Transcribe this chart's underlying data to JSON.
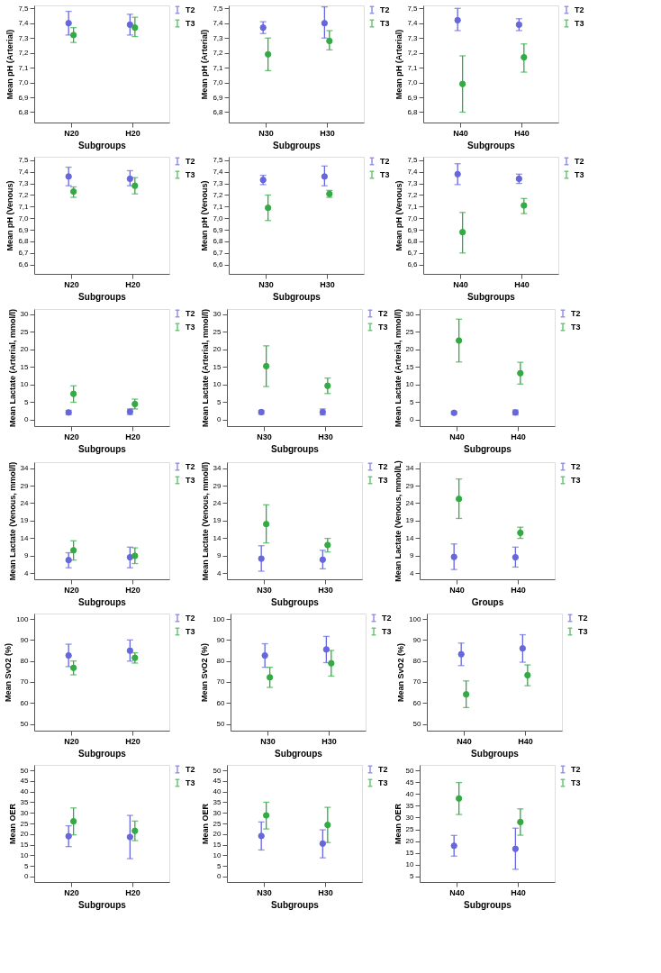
{
  "chart_data": [
    {
      "type": "scatter",
      "categories": [
        "N20",
        "H20"
      ],
      "xlabel": "Subgroups",
      "ylabel": "Mean pH (Arterial)",
      "ylim": [
        6.73,
        7.52
      ],
      "yticks": [
        {
          "value": 6.8,
          "label": "6,8"
        },
        {
          "value": 6.9,
          "label": "6,9"
        },
        {
          "value": 7.0,
          "label": "7,0"
        },
        {
          "value": 7.1,
          "label": "7,1"
        },
        {
          "value": 7.2,
          "label": "7,2"
        },
        {
          "value": 7.3,
          "label": "7,3"
        },
        {
          "value": 7.4,
          "label": "7,4"
        },
        {
          "value": 7.5,
          "label": "7,5"
        }
      ],
      "legend": "top right",
      "marker": "circle",
      "series": [
        {
          "name": "T2",
          "color": "#6666dd",
          "values": [
            7.4,
            7.39
          ],
          "errors": [
            [
              7.32,
              7.48
            ],
            [
              7.32,
              7.46
            ]
          ]
        },
        {
          "name": "T3",
          "color": "#33aa44",
          "values": [
            7.32,
            7.37
          ],
          "errors": [
            [
              7.27,
              7.37
            ],
            [
              7.31,
              7.44
            ]
          ]
        }
      ]
    },
    {
      "type": "scatter",
      "categories": [
        "N30",
        "H30"
      ],
      "xlabel": "Subgroups",
      "ylabel": "Mean pH (Arterial)",
      "ylim": [
        6.73,
        7.52
      ],
      "yticks": [
        {
          "value": 6.8,
          "label": "6,8"
        },
        {
          "value": 6.9,
          "label": "6,9"
        },
        {
          "value": 7.0,
          "label": "7,0"
        },
        {
          "value": 7.1,
          "label": "7,1"
        },
        {
          "value": 7.2,
          "label": "7,2"
        },
        {
          "value": 7.3,
          "label": "7,3"
        },
        {
          "value": 7.4,
          "label": "7,4"
        },
        {
          "value": 7.5,
          "label": "7,5"
        }
      ],
      "legend": "top right",
      "marker": "circle",
      "series": [
        {
          "name": "T2",
          "color": "#6666dd",
          "values": [
            7.37,
            7.4
          ],
          "errors": [
            [
              7.33,
              7.41
            ],
            [
              7.3,
              7.51
            ]
          ]
        },
        {
          "name": "T3",
          "color": "#33aa44",
          "values": [
            7.19,
            7.28
          ],
          "errors": [
            [
              7.08,
              7.3
            ],
            [
              7.22,
              7.35
            ]
          ]
        }
      ]
    },
    {
      "type": "scatter",
      "categories": [
        "N40",
        "H40"
      ],
      "xlabel": "Subgroups",
      "ylabel": "Mean pH (Arterial)",
      "ylim": [
        6.73,
        7.52
      ],
      "yticks": [
        {
          "value": 6.8,
          "label": "6,8"
        },
        {
          "value": 6.9,
          "label": "6,9"
        },
        {
          "value": 7.0,
          "label": "7,0"
        },
        {
          "value": 7.1,
          "label": "7,1"
        },
        {
          "value": 7.2,
          "label": "7,2"
        },
        {
          "value": 7.3,
          "label": "7,3"
        },
        {
          "value": 7.4,
          "label": "7,4"
        },
        {
          "value": 7.5,
          "label": "7,5"
        }
      ],
      "legend": "top right",
      "marker": "circle",
      "series": [
        {
          "name": "T2",
          "color": "#6666dd",
          "values": [
            7.42,
            7.39
          ],
          "errors": [
            [
              7.35,
              7.5
            ],
            [
              7.35,
              7.43
            ]
          ]
        },
        {
          "name": "T3",
          "color": "#33aa44",
          "values": [
            6.99,
            7.17
          ],
          "errors": [
            [
              6.8,
              7.18
            ],
            [
              7.07,
              7.26
            ]
          ]
        }
      ]
    },
    {
      "type": "scatter",
      "categories": [
        "N20",
        "H20"
      ],
      "xlabel": "Subgroups",
      "ylabel": "Mean pH (Venous)",
      "ylim": [
        6.52,
        7.53
      ],
      "yticks": [
        {
          "value": 6.6,
          "label": "6,6"
        },
        {
          "value": 6.7,
          "label": "6,7"
        },
        {
          "value": 6.8,
          "label": "6,8"
        },
        {
          "value": 6.9,
          "label": "6,9"
        },
        {
          "value": 7.0,
          "label": "7,0"
        },
        {
          "value": 7.1,
          "label": "7,1"
        },
        {
          "value": 7.2,
          "label": "7,2"
        },
        {
          "value": 7.3,
          "label": "7,3"
        },
        {
          "value": 7.4,
          "label": "7,4"
        },
        {
          "value": 7.5,
          "label": "7,5"
        }
      ],
      "legend": "top right",
      "marker": "circle",
      "series": [
        {
          "name": "T2",
          "color": "#6666dd",
          "values": [
            7.36,
            7.34
          ],
          "errors": [
            [
              7.28,
              7.44
            ],
            [
              7.28,
              7.41
            ]
          ]
        },
        {
          "name": "T3",
          "color": "#33aa44",
          "values": [
            7.23,
            7.28
          ],
          "errors": [
            [
              7.18,
              7.27
            ],
            [
              7.21,
              7.35
            ]
          ]
        }
      ]
    },
    {
      "type": "scatter",
      "categories": [
        "N30",
        "H30"
      ],
      "xlabel": "Subgroups",
      "ylabel": "Mean pH (Venous)",
      "ylim": [
        6.52,
        7.53
      ],
      "yticks": [
        {
          "value": 6.6,
          "label": "6,6"
        },
        {
          "value": 6.7,
          "label": "6,7"
        },
        {
          "value": 6.8,
          "label": "6,8"
        },
        {
          "value": 6.9,
          "label": "6,9"
        },
        {
          "value": 7.0,
          "label": "7,0"
        },
        {
          "value": 7.1,
          "label": "7,1"
        },
        {
          "value": 7.2,
          "label": "7,2"
        },
        {
          "value": 7.3,
          "label": "7,3"
        },
        {
          "value": 7.4,
          "label": "7,4"
        },
        {
          "value": 7.5,
          "label": "7,5"
        }
      ],
      "legend": "top right",
      "marker": "circle",
      "series": [
        {
          "name": "T2",
          "color": "#6666dd",
          "values": [
            7.33,
            7.36
          ],
          "errors": [
            [
              7.29,
              7.37
            ],
            [
              7.28,
              7.45
            ]
          ]
        },
        {
          "name": "T3",
          "color": "#33aa44",
          "values": [
            7.09,
            7.21
          ],
          "errors": [
            [
              6.98,
              7.2
            ],
            [
              7.18,
              7.24
            ]
          ]
        }
      ]
    },
    {
      "type": "scatter",
      "categories": [
        "N40",
        "H40"
      ],
      "xlabel": "Subgroups",
      "ylabel": "Mean pH (Venous)",
      "ylim": [
        6.52,
        7.53
      ],
      "yticks": [
        {
          "value": 6.6,
          "label": "6,6"
        },
        {
          "value": 6.7,
          "label": "6,7"
        },
        {
          "value": 6.8,
          "label": "6,8"
        },
        {
          "value": 6.9,
          "label": "6,9"
        },
        {
          "value": 7.0,
          "label": "7,0"
        },
        {
          "value": 7.1,
          "label": "7,1"
        },
        {
          "value": 7.2,
          "label": "7,2"
        },
        {
          "value": 7.3,
          "label": "7,3"
        },
        {
          "value": 7.4,
          "label": "7,4"
        },
        {
          "value": 7.5,
          "label": "7,5"
        }
      ],
      "legend": "top right",
      "marker": "circle",
      "series": [
        {
          "name": "T2",
          "color": "#6666dd",
          "values": [
            7.38,
            7.34
          ],
          "errors": [
            [
              7.29,
              7.47
            ],
            [
              7.3,
              7.38
            ]
          ]
        },
        {
          "name": "T3",
          "color": "#33aa44",
          "values": [
            6.88,
            7.11
          ],
          "errors": [
            [
              6.7,
              7.05
            ],
            [
              7.04,
              7.17
            ]
          ]
        }
      ]
    },
    {
      "type": "scatter",
      "categories": [
        "N20",
        "H20"
      ],
      "xlabel": "Subgroups",
      "ylabel": "Mean Lactate (Arterial, mmol/l)",
      "ylim": [
        -1.9,
        31.5
      ],
      "yticks": [
        0,
        5,
        10,
        15,
        20,
        25,
        30
      ],
      "legend": "top right",
      "marker": "circle",
      "series": [
        {
          "name": "T2",
          "color": "#6666dd",
          "values": [
            2.0,
            2.2
          ],
          "errors": [
            [
              1.4,
              2.6
            ],
            [
              1.4,
              3.0
            ]
          ]
        },
        {
          "name": "T3",
          "color": "#33aa44",
          "values": [
            7.3,
            4.4
          ],
          "errors": [
            [
              4.9,
              9.6
            ],
            [
              3.0,
              5.8
            ]
          ]
        }
      ]
    },
    {
      "type": "scatter",
      "categories": [
        "N30",
        "H30"
      ],
      "xlabel": "Subgroups",
      "ylabel": "Mean Lactate (Arterial, mmol/l)",
      "ylim": [
        -1.9,
        31.5
      ],
      "yticks": [
        0,
        5,
        10,
        15,
        20,
        25,
        30
      ],
      "legend": "top right",
      "marker": "circle",
      "series": [
        {
          "name": "T2",
          "color": "#6666dd",
          "values": [
            2.1,
            2.1
          ],
          "errors": [
            [
              1.5,
              2.6
            ],
            [
              1.3,
              3.0
            ]
          ]
        },
        {
          "name": "T3",
          "color": "#33aa44",
          "values": [
            15.2,
            9.6
          ],
          "errors": [
            [
              9.4,
              21.0
            ],
            [
              7.4,
              11.8
            ]
          ]
        }
      ]
    },
    {
      "type": "scatter",
      "categories": [
        "N40",
        "H40"
      ],
      "xlabel": "Subgroups",
      "ylabel": "Mean Lactate (Arterial, mmol/l)",
      "ylim": [
        -1.9,
        31.5
      ],
      "yticks": [
        0,
        5,
        10,
        15,
        20,
        25,
        30
      ],
      "legend": "top right",
      "marker": "circle",
      "series": [
        {
          "name": "T2",
          "color": "#6666dd",
          "values": [
            1.9,
            2.0
          ],
          "errors": [
            [
              1.5,
              2.3
            ],
            [
              1.3,
              2.7
            ]
          ]
        },
        {
          "name": "T3",
          "color": "#33aa44",
          "values": [
            22.5,
            13.2
          ],
          "errors": [
            [
              16.4,
              28.6
            ],
            [
              10.1,
              16.3
            ]
          ]
        }
      ]
    },
    {
      "type": "scatter",
      "categories": [
        "N20",
        "H20"
      ],
      "xlabel": "Subgroups",
      "ylabel": "Mean Lactate (Venous, mmol/l)",
      "ylim": [
        2.2,
        35.7
      ],
      "yticks": [
        4,
        9,
        14,
        19,
        24,
        29,
        34
      ],
      "legend": "top right",
      "marker": "circle",
      "series": [
        {
          "name": "T2",
          "color": "#6666dd",
          "values": [
            7.7,
            8.5
          ],
          "errors": [
            [
              5.5,
              9.8
            ],
            [
              5.5,
              11.4
            ]
          ]
        },
        {
          "name": "T3",
          "color": "#33aa44",
          "values": [
            10.5,
            8.9
          ],
          "errors": [
            [
              7.7,
              13.2
            ],
            [
              6.7,
              11.2
            ]
          ]
        }
      ]
    },
    {
      "type": "scatter",
      "categories": [
        "N30",
        "H30"
      ],
      "xlabel": "Subgroups",
      "ylabel": "Mean Lactate (Venous, mmol/l)",
      "ylim": [
        2.2,
        35.7
      ],
      "yticks": [
        4,
        9,
        14,
        19,
        24,
        29,
        34
      ],
      "legend": "top right",
      "marker": "circle",
      "series": [
        {
          "name": "T2",
          "color": "#6666dd",
          "values": [
            8.1,
            7.8
          ],
          "errors": [
            [
              4.5,
              11.8
            ],
            [
              5.2,
              10.5
            ]
          ]
        },
        {
          "name": "T3",
          "color": "#33aa44",
          "values": [
            18.0,
            12.0
          ],
          "errors": [
            [
              12.6,
              23.5
            ],
            [
              10.0,
              13.9
            ]
          ]
        }
      ]
    },
    {
      "type": "scatter",
      "categories": [
        "N40",
        "H40"
      ],
      "xlabel": "Groups",
      "ylabel": "Mean Lactate (Venous, mmol/L)",
      "ylim": [
        2.2,
        35.7
      ],
      "yticks": [
        4,
        9,
        14,
        19,
        24,
        29,
        34
      ],
      "legend": "top right",
      "marker": "circle",
      "series": [
        {
          "name": "T2",
          "color": "#6666dd",
          "values": [
            8.6,
            8.5
          ],
          "errors": [
            [
              5.0,
              12.3
            ],
            [
              5.7,
              11.4
            ]
          ]
        },
        {
          "name": "T3",
          "color": "#33aa44",
          "values": [
            25.2,
            15.5
          ],
          "errors": [
            [
              19.6,
              30.9
            ],
            [
              13.9,
              17.1
            ]
          ]
        }
      ]
    },
    {
      "type": "scatter",
      "categories": [
        "N20",
        "H20"
      ],
      "xlabel": "Subgroups",
      "ylabel": "Mean SvO2 (%)",
      "ylim": [
        46.8,
        102.6
      ],
      "yticks": [
        50,
        60,
        70,
        80,
        90,
        100
      ],
      "legend": "top right",
      "marker": "circle",
      "series": [
        {
          "name": "T2",
          "color": "#6666dd",
          "values": [
            82.6,
            84.9
          ],
          "errors": [
            [
              77.3,
              88.0
            ],
            [
              79.9,
              90.0
            ]
          ]
        },
        {
          "name": "T3",
          "color": "#33aa44",
          "values": [
            76.7,
            81.5
          ],
          "errors": [
            [
              73.4,
              80.0
            ],
            [
              79.0,
              83.9
            ]
          ]
        }
      ]
    },
    {
      "type": "scatter",
      "categories": [
        "N30",
        "H30"
      ],
      "xlabel": "Subgroups",
      "ylabel": "Mean SvO2 (%)",
      "ylim": [
        46.8,
        102.6
      ],
      "yticks": [
        50,
        60,
        70,
        80,
        90,
        100
      ],
      "legend": "top right",
      "marker": "circle",
      "series": [
        {
          "name": "T2",
          "color": "#6666dd",
          "values": [
            82.6,
            85.5
          ],
          "errors": [
            [
              77.0,
              88.2
            ],
            [
              79.2,
              91.7
            ]
          ]
        },
        {
          "name": "T3",
          "color": "#33aa44",
          "values": [
            72.2,
            78.9
          ],
          "errors": [
            [
              67.4,
              77.0
            ],
            [
              72.8,
              85.0
            ]
          ]
        }
      ]
    },
    {
      "type": "scatter",
      "categories": [
        "N40",
        "H40"
      ],
      "xlabel": "Subgroups",
      "ylabel": "Mean SvO2 (%)",
      "ylim": [
        46.8,
        102.6
      ],
      "yticks": [
        50,
        60,
        70,
        80,
        90,
        100
      ],
      "legend": "top right",
      "marker": "circle",
      "series": [
        {
          "name": "T2",
          "color": "#6666dd",
          "values": [
            83.2,
            86.0
          ],
          "errors": [
            [
              77.8,
              88.5
            ],
            [
              79.4,
              92.5
            ]
          ]
        },
        {
          "name": "T3",
          "color": "#33aa44",
          "values": [
            64.1,
            73.2
          ],
          "errors": [
            [
              57.8,
              70.5
            ],
            [
              68.2,
              78.1
            ]
          ]
        }
      ]
    },
    {
      "type": "scatter",
      "categories": [
        "N20",
        "H20"
      ],
      "xlabel": "Subgroups",
      "ylabel": "Mean OER",
      "ylim": [
        -2.6,
        52.6
      ],
      "yticks": [
        0,
        5,
        10,
        15,
        20,
        25,
        30,
        35,
        40,
        45,
        50
      ],
      "legend": "top right",
      "marker": "circle",
      "series": [
        {
          "name": "T2",
          "color": "#6666dd",
          "values": [
            19.0,
            18.6
          ],
          "errors": [
            [
              14.1,
              23.9
            ],
            [
              8.4,
              28.8
            ]
          ]
        },
        {
          "name": "T3",
          "color": "#33aa44",
          "values": [
            26.0,
            21.5
          ],
          "errors": [
            [
              19.6,
              32.3
            ],
            [
              16.9,
              26.1
            ]
          ]
        }
      ]
    },
    {
      "type": "scatter",
      "categories": [
        "N30",
        "H30"
      ],
      "xlabel": "Subgroups",
      "ylabel": "Mean OER",
      "ylim": [
        -2.6,
        52.6
      ],
      "yticks": [
        0,
        5,
        10,
        15,
        20,
        25,
        30,
        35,
        40,
        45,
        50
      ],
      "legend": "top right",
      "marker": "circle",
      "series": [
        {
          "name": "T2",
          "color": "#6666dd",
          "values": [
            19.1,
            15.5
          ],
          "errors": [
            [
              12.5,
              25.7
            ],
            [
              8.8,
              22.0
            ]
          ]
        },
        {
          "name": "T3",
          "color": "#33aa44",
          "values": [
            28.8,
            24.3
          ],
          "errors": [
            [
              22.4,
              35.0
            ],
            [
              16.0,
              32.6
            ]
          ]
        }
      ]
    },
    {
      "type": "scatter",
      "categories": [
        "N40",
        "H40"
      ],
      "xlabel": "Subgroups",
      "ylabel": "Mean OER",
      "ylim": [
        2.6,
        52.4
      ],
      "yticks": [
        5,
        10,
        15,
        20,
        25,
        30,
        35,
        40,
        45,
        50
      ],
      "legend": "top right",
      "marker": "circle",
      "series": [
        {
          "name": "T2",
          "color": "#6666dd",
          "values": [
            18.0,
            16.7
          ],
          "errors": [
            [
              13.6,
              22.4
            ],
            [
              8.0,
              25.5
            ]
          ]
        },
        {
          "name": "T3",
          "color": "#33aa44",
          "values": [
            38.1,
            28.1
          ],
          "errors": [
            [
              31.3,
              44.9
            ],
            [
              22.5,
              33.7
            ]
          ]
        }
      ]
    }
  ]
}
